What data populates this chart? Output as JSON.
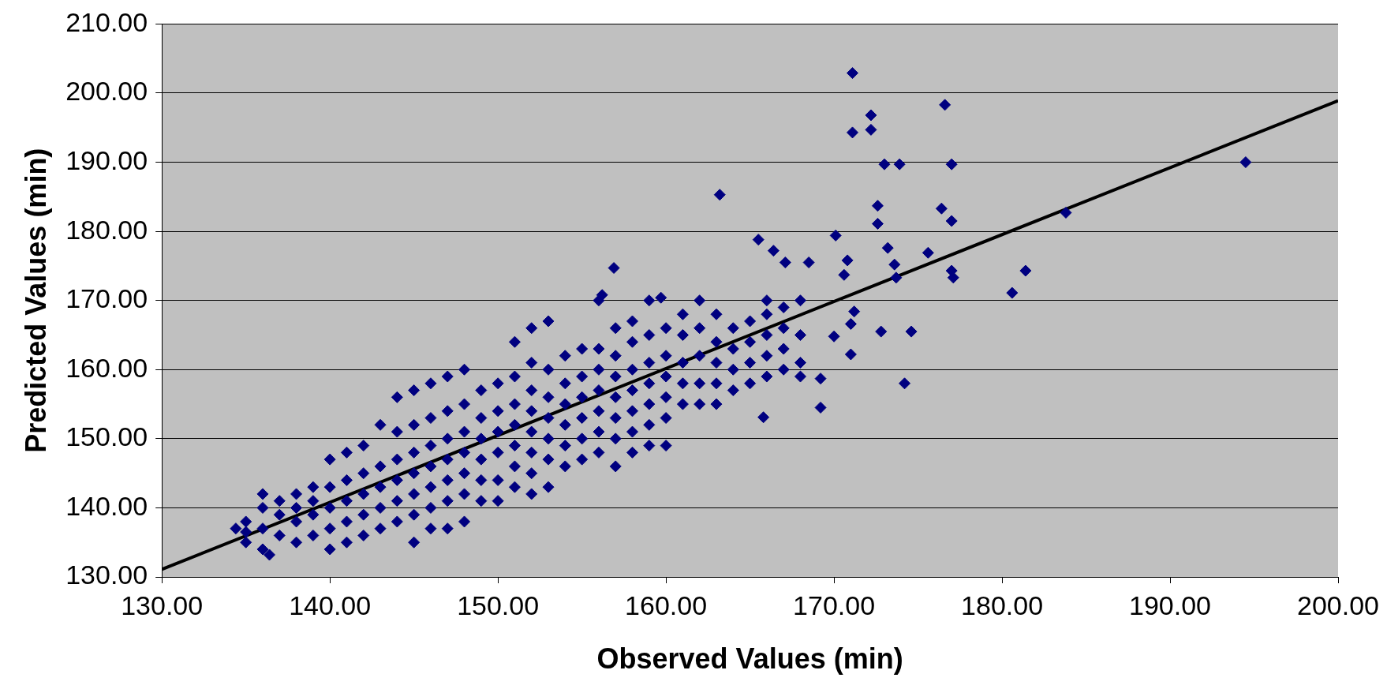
{
  "chart_data": {
    "type": "scatter",
    "xlabel": "Observed Values (min)",
    "ylabel": "Predicted Values (min)",
    "xlim": [
      130,
      200
    ],
    "ylim": [
      130,
      210
    ],
    "xticks": [
      {
        "value": 130,
        "label": "130.00"
      },
      {
        "value": 140,
        "label": "140.00"
      },
      {
        "value": 150,
        "label": "150.00"
      },
      {
        "value": 160,
        "label": "160.00"
      },
      {
        "value": 170,
        "label": "170.00"
      },
      {
        "value": 180,
        "label": "180.00"
      },
      {
        "value": 190,
        "label": "190.00"
      },
      {
        "value": 200,
        "label": "200.00"
      }
    ],
    "yticks": [
      {
        "value": 130,
        "label": "130.00"
      },
      {
        "value": 140,
        "label": "140.00"
      },
      {
        "value": 150,
        "label": "150.00"
      },
      {
        "value": 160,
        "label": "160.00"
      },
      {
        "value": 170,
        "label": "170.00"
      },
      {
        "value": 180,
        "label": "180.00"
      },
      {
        "value": 190,
        "label": "190.00"
      },
      {
        "value": 200,
        "label": "200.00"
      },
      {
        "value": 210,
        "label": "210.00"
      }
    ],
    "grid": "y",
    "legend": false,
    "marker": "diamond",
    "series": [
      {
        "color": "#000080",
        "x": [
          135,
          135,
          135,
          136,
          136,
          136,
          136,
          137,
          137,
          137,
          138,
          138,
          138,
          138,
          139,
          139,
          139,
          139,
          140,
          140,
          140,
          140,
          140,
          141,
          141,
          141,
          141,
          141,
          142,
          142,
          142,
          142,
          142,
          143,
          143,
          143,
          143,
          143,
          144,
          144,
          144,
          144,
          144,
          144,
          145,
          145,
          145,
          145,
          145,
          145,
          145,
          146,
          146,
          146,
          146,
          146,
          146,
          146,
          147,
          147,
          147,
          147,
          147,
          147,
          147,
          148,
          148,
          148,
          148,
          148,
          148,
          148,
          149,
          149,
          149,
          149,
          149,
          149,
          150,
          150,
          150,
          150,
          150,
          150,
          151,
          151,
          151,
          151,
          151,
          151,
          151,
          152,
          152,
          152,
          152,
          152,
          152,
          152,
          152,
          153,
          153,
          153,
          153,
          153,
          153,
          153,
          154,
          154,
          154,
          154,
          154,
          154,
          155,
          155,
          155,
          155,
          155,
          155,
          156,
          156,
          156,
          156,
          156,
          156,
          156,
          157,
          157,
          157,
          157,
          157,
          157,
          157,
          158,
          158,
          158,
          158,
          158,
          158,
          158,
          159,
          159,
          159,
          159,
          159,
          159,
          159,
          160,
          160,
          160,
          160,
          160,
          160,
          161,
          161,
          161,
          161,
          161,
          162,
          162,
          162,
          162,
          162,
          163,
          163,
          163,
          163,
          163,
          164,
          164,
          164,
          164,
          165,
          165,
          165,
          165,
          166,
          166,
          166,
          166,
          166,
          167,
          167,
          167,
          167,
          168,
          168,
          168,
          168,
          171.1,
          171.1,
          172.2,
          172.2,
          176.6,
          173.0,
          173.9,
          177.0,
          194.5,
          172.6,
          172.6,
          176.4,
          177.0,
          183.8,
          163.2,
          165.5,
          173.2,
          173.6,
          173.7,
          175.6,
          177.0,
          177.1,
          180.6,
          181.4,
          170.1,
          170.8,
          170.6,
          166.4,
          167.1,
          168.5,
          156.9,
          156.2,
          159.7,
          171.2,
          171.0,
          170.0,
          172.8,
          174.6,
          174.2,
          171.0,
          169.2,
          165.8,
          169.2,
          136.4,
          134.4
        ],
        "values": [
          136.5,
          135,
          138,
          134,
          137,
          140,
          142,
          136,
          139,
          141,
          135,
          138,
          140,
          142,
          136,
          139,
          141,
          143,
          134,
          137,
          140,
          143,
          147,
          135,
          138,
          141,
          144,
          148,
          136,
          139,
          142,
          145,
          149,
          137,
          140,
          143,
          146,
          152,
          138,
          141,
          144,
          147,
          151,
          156,
          135,
          139,
          142,
          145,
          148,
          152,
          157,
          137,
          140,
          143,
          146,
          149,
          153,
          158,
          137,
          141,
          144,
          147,
          150,
          154,
          159,
          138,
          142,
          145,
          148,
          151,
          155,
          160,
          141,
          144,
          147,
          150,
          153,
          157,
          141,
          144,
          148,
          151,
          154,
          158,
          143,
          146,
          149,
          152,
          155,
          159,
          164,
          142,
          145,
          148,
          151,
          154,
          157,
          161,
          166,
          143,
          147,
          150,
          153,
          156,
          160,
          167,
          146,
          149,
          152,
          155,
          158,
          162,
          147,
          150,
          153,
          156,
          159,
          163,
          148,
          151,
          154,
          157,
          160,
          163,
          170,
          146,
          150,
          153,
          156,
          159,
          162,
          166,
          148,
          151,
          154,
          157,
          160,
          164,
          167,
          149,
          152,
          155,
          158,
          161,
          165,
          170,
          149,
          153,
          156,
          159,
          162,
          166,
          155,
          158,
          161,
          165,
          168,
          155,
          158,
          162,
          166,
          170,
          155,
          158,
          161,
          164,
          168,
          157,
          160,
          163,
          166,
          158,
          161,
          164,
          167,
          159,
          162,
          165,
          168,
          170,
          160,
          163,
          166,
          169,
          159,
          161,
          165,
          170,
          202.9,
          194.3,
          196.8,
          194.7,
          198.3,
          189.7,
          189.7,
          189.7,
          190.0,
          183.7,
          181.1,
          183.3,
          181.5,
          182.7,
          185.3,
          178.8,
          177.6,
          175.2,
          173.3,
          176.9,
          174.3,
          173.3,
          171.1,
          174.3,
          179.4,
          175.8,
          173.7,
          177.2,
          175.5,
          175.5,
          174.7,
          170.8,
          170.4,
          168.4,
          166.6,
          164.8,
          165.5,
          165.5,
          158.0,
          162.2,
          154.5,
          153.1,
          158.7,
          133.2,
          137.0
        ]
      },
      {
        "type": "line",
        "color": "#000000",
        "marker": "none",
        "x": [
          130,
          200
        ],
        "values": [
          131.1,
          198.9
        ]
      }
    ]
  }
}
